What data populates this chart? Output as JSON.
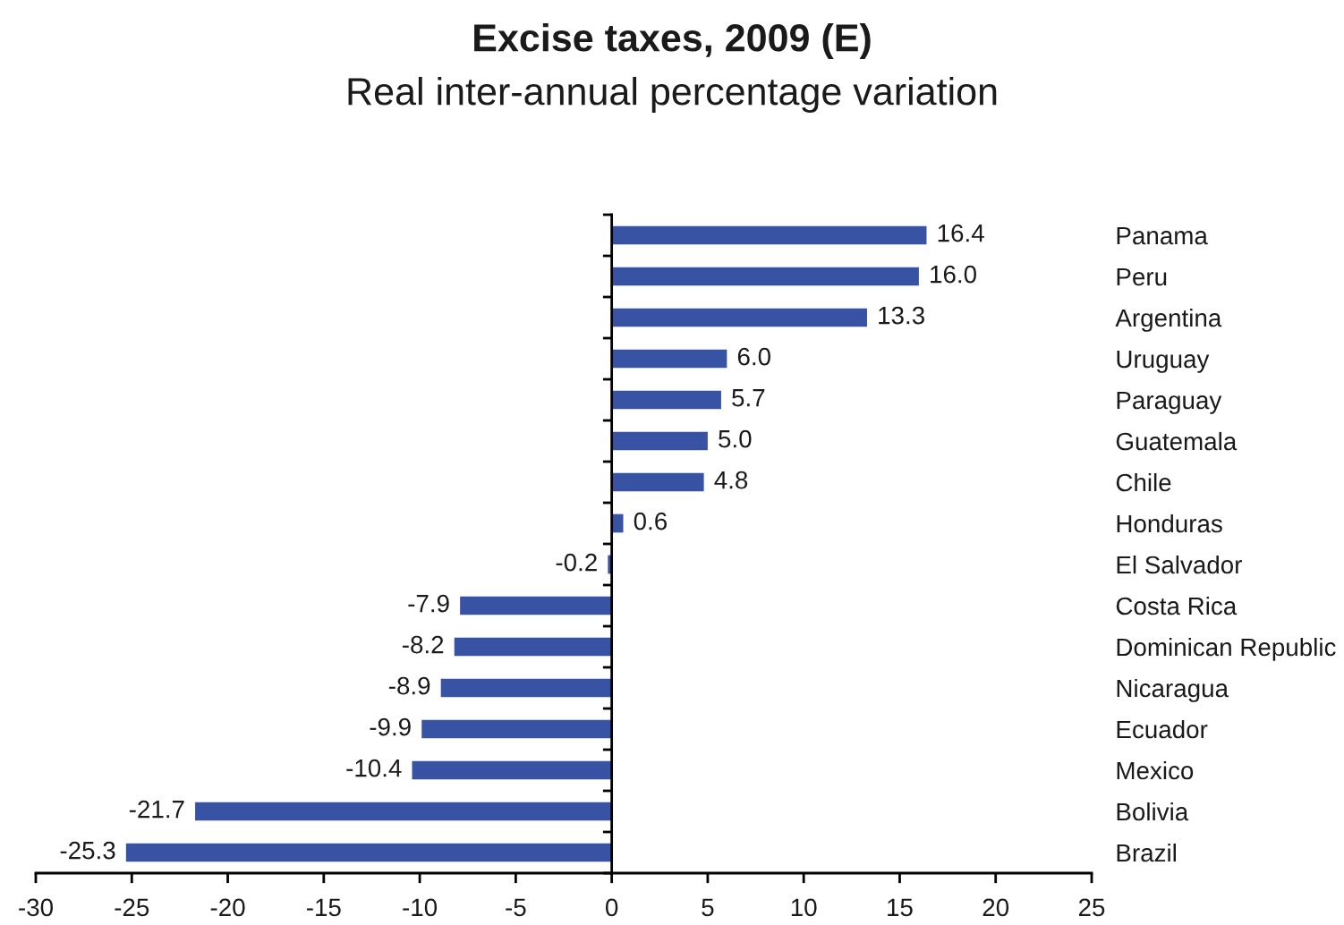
{
  "chart_data": {
    "type": "bar",
    "orientation": "horizontal",
    "title": "Excise taxes, 2009 (E)",
    "subtitle": "Real inter-annual percentage variation",
    "categories": [
      "Panama",
      "Peru",
      "Argentina",
      "Uruguay",
      "Paraguay",
      "Guatemala",
      "Chile",
      "Honduras",
      "El Salvador",
      "Costa Rica",
      "Dominican Republic",
      "Nicaragua",
      "Ecuador",
      "Mexico",
      "Bolivia",
      "Brazil"
    ],
    "values": [
      16.4,
      16.0,
      13.3,
      6.0,
      5.7,
      5.0,
      4.8,
      0.6,
      -0.2,
      -7.9,
      -8.2,
      -8.9,
      -9.9,
      -10.4,
      -21.7,
      -25.3
    ],
    "value_labels": [
      "16.4",
      "16.0",
      "13.3",
      "6.0",
      "5.7",
      "5.0",
      "4.8",
      "0.6",
      "-0.2",
      "-7.9",
      "-8.2",
      "-8.9",
      "-9.9",
      "-10.4",
      "-21.7",
      "-25.3"
    ],
    "color": "#3953a4",
    "xlim": [
      -30,
      25
    ],
    "xticks": [
      -30,
      -25,
      -20,
      -15,
      -10,
      -5,
      0,
      5,
      10,
      15,
      20,
      25
    ]
  }
}
